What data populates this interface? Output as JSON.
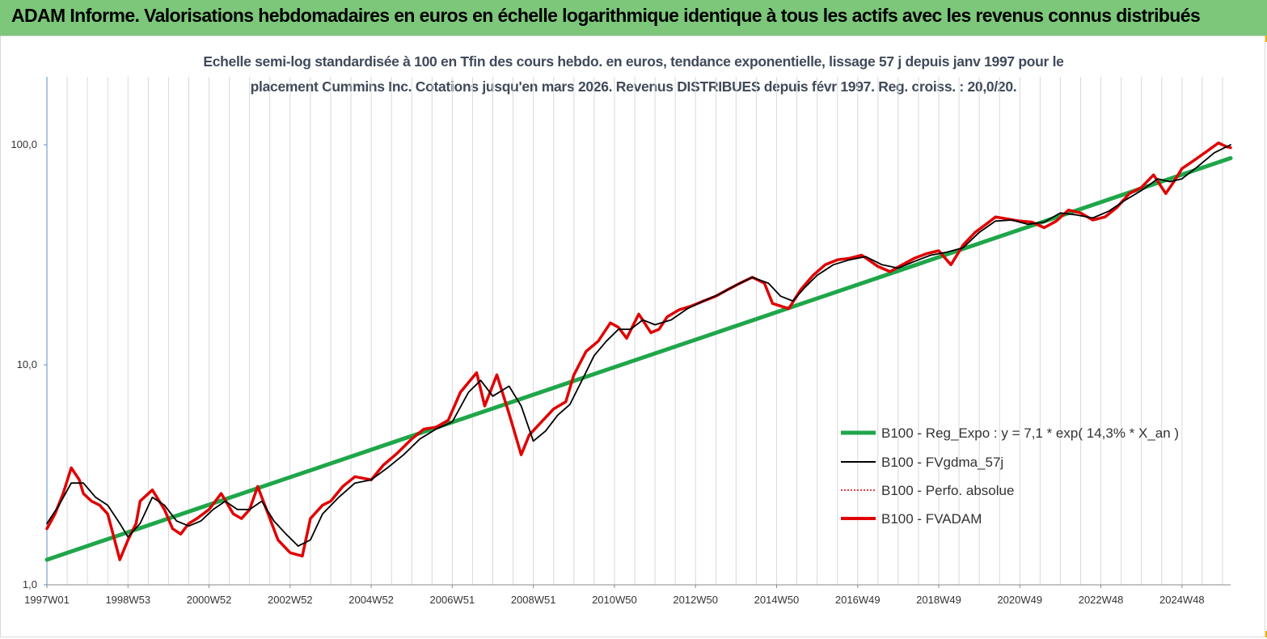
{
  "header": {
    "title": "ADAM Informe. Valorisations hebdomadaires en euros en échelle logarithmique identique à tous les actifs avec les revenus connus distribués"
  },
  "colors": {
    "header_bg": "#7cc77a",
    "accent": "#f5b400",
    "reg_expo": "#1fa64a",
    "fvgdma": "#000000",
    "perfo": "#e00000",
    "fvadam": "#e00000"
  },
  "chart_data": {
    "type": "line",
    "scale": "log",
    "subtitle_line1": "Echelle semi-log standardisée à 100 en Tfin des cours hebdo. en euros, tendance exponentielle, lissage 57 j depuis janv 1997 pour le",
    "subtitle_line2": "placement Cummins Inc. Cotations jusqu'en mars 2026. Revenus DISTRIBUES depuis févr 1997. Reg. croiss. : 20,0/20.",
    "ylim": [
      1,
      200
    ],
    "xlim": [
      1997.0,
      2026.2
    ],
    "grid": "vertical",
    "legend_position": "right",
    "y_ticks": [
      {
        "value": 1,
        "label": "1,0"
      },
      {
        "value": 10,
        "label": "10,0"
      },
      {
        "value": 100,
        "label": "100,0"
      }
    ],
    "x_ticks": [
      {
        "value": 1997.0,
        "label": "1997W01"
      },
      {
        "value": 1999.0,
        "label": "1998W53"
      },
      {
        "value": 2001.0,
        "label": "2000W52"
      },
      {
        "value": 2003.0,
        "label": "2002W52"
      },
      {
        "value": 2005.0,
        "label": "2004W52"
      },
      {
        "value": 2007.0,
        "label": "2006W51"
      },
      {
        "value": 2009.0,
        "label": "2008W51"
      },
      {
        "value": 2011.0,
        "label": "2010W50"
      },
      {
        "value": 2013.0,
        "label": "2012W50"
      },
      {
        "value": 2015.0,
        "label": "2014W50"
      },
      {
        "value": 2017.0,
        "label": "2016W49"
      },
      {
        "value": 2019.0,
        "label": "2018W49"
      },
      {
        "value": 2021.0,
        "label": "2020W49"
      },
      {
        "value": 2023.0,
        "label": "2022W48"
      },
      {
        "value": 2025.0,
        "label": "2024W48"
      }
    ],
    "legend": [
      "B100 - Reg_Expo : y = 7,1 * exp( 14,3% *  X_an )",
      "B100 - FVgdma_57j",
      "B100 - Perfo. absolue",
      "B100 - FVADAM"
    ],
    "series": [
      {
        "name": "B100 - Reg_Expo : y = 7,1 * exp( 14,3% *  X_an )",
        "x": [
          1997.0,
          2026.2
        ],
        "y": [
          1.3,
          87
        ]
      },
      {
        "name": "B100 - FVADAM",
        "x": [
          1997.0,
          1997.2,
          1997.4,
          1997.6,
          1997.8,
          1997.9,
          1998.1,
          1998.3,
          1998.5,
          1998.8,
          1999.0,
          1999.2,
          1999.3,
          1999.6,
          1999.9,
          2000.1,
          2000.3,
          2000.5,
          2000.7,
          2001.0,
          2001.3,
          2001.6,
          2001.8,
          2002.0,
          2002.2,
          2002.5,
          2002.7,
          2003.0,
          2003.3,
          2003.5,
          2003.8,
          2004.0,
          2004.3,
          2004.6,
          2005.0,
          2005.3,
          2005.6,
          2006.0,
          2006.3,
          2006.6,
          2006.9,
          2007.2,
          2007.6,
          2007.8,
          2008.1,
          2008.4,
          2008.7,
          2008.9,
          2009.2,
          2009.5,
          2009.8,
          2010.0,
          2010.3,
          2010.6,
          2010.9,
          2011.1,
          2011.3,
          2011.6,
          2011.9,
          2012.1,
          2012.3,
          2012.6,
          2012.9,
          2013.2,
          2013.5,
          2013.8,
          2014.1,
          2014.4,
          2014.7,
          2014.9,
          2015.3,
          2015.6,
          2015.9,
          2016.2,
          2016.5,
          2016.8,
          2017.1,
          2017.5,
          2017.8,
          2018.1,
          2018.4,
          2018.7,
          2019.0,
          2019.3,
          2019.6,
          2019.9,
          2020.2,
          2020.4,
          2020.7,
          2021.0,
          2021.3,
          2021.6,
          2021.9,
          2022.2,
          2022.5,
          2022.8,
          2023.1,
          2023.4,
          2023.7,
          2024.0,
          2024.3,
          2024.6,
          2024.8,
          2025.0,
          2025.3,
          2025.6,
          2025.9,
          2026.1,
          2026.2
        ],
        "y": [
          1.8,
          2.1,
          2.6,
          3.4,
          3.0,
          2.6,
          2.4,
          2.3,
          2.1,
          1.3,
          1.6,
          1.9,
          2.4,
          2.7,
          2.2,
          1.8,
          1.7,
          1.9,
          2.0,
          2.2,
          2.6,
          2.1,
          2.0,
          2.2,
          2.8,
          2.0,
          1.6,
          1.4,
          1.35,
          2.0,
          2.3,
          2.4,
          2.8,
          3.1,
          3.0,
          3.5,
          3.9,
          4.6,
          5.1,
          5.2,
          5.6,
          7.5,
          9.2,
          6.5,
          9.0,
          6.0,
          3.9,
          4.8,
          5.5,
          6.3,
          6.8,
          9.0,
          11.5,
          12.8,
          15.5,
          14.8,
          13.2,
          17.0,
          14.0,
          14.5,
          16.5,
          17.8,
          18.5,
          19.5,
          20.5,
          22.0,
          23.5,
          25.0,
          23.5,
          19.0,
          18.0,
          22.0,
          25.5,
          28.5,
          30.0,
          30.5,
          31.5,
          28.0,
          26.5,
          28.5,
          30.5,
          32.0,
          33.0,
          28.5,
          35.0,
          40.0,
          44.0,
          47.0,
          46.0,
          45.0,
          44.5,
          42.0,
          45.0,
          50.5,
          49.0,
          45.5,
          47.0,
          52.0,
          60.0,
          64.0,
          73.0,
          60.0,
          68.0,
          78.0,
          85.0,
          93.0,
          102.0,
          98.0,
          97.0
        ]
      },
      {
        "name": "B100 - FVgdma_57j",
        "x": [
          1997.0,
          1997.3,
          1997.6,
          1997.9,
          1998.2,
          1998.5,
          1998.8,
          1999.0,
          1999.3,
          1999.6,
          1999.9,
          2000.2,
          2000.5,
          2000.8,
          2001.1,
          2001.4,
          2001.7,
          2002.0,
          2002.3,
          2002.6,
          2002.9,
          2003.2,
          2003.5,
          2003.8,
          2004.2,
          2004.6,
          2005.0,
          2005.4,
          2005.8,
          2006.2,
          2006.6,
          2007.0,
          2007.4,
          2007.7,
          2008.0,
          2008.4,
          2008.7,
          2009.0,
          2009.3,
          2009.6,
          2009.9,
          2010.2,
          2010.5,
          2010.8,
          2011.1,
          2011.4,
          2011.7,
          2012.0,
          2012.4,
          2012.8,
          2013.2,
          2013.6,
          2014.0,
          2014.4,
          2014.8,
          2015.1,
          2015.4,
          2015.7,
          2016.0,
          2016.4,
          2016.8,
          2017.2,
          2017.6,
          2018.0,
          2018.4,
          2018.8,
          2019.2,
          2019.6,
          2020.0,
          2020.4,
          2020.8,
          2021.2,
          2021.6,
          2022.0,
          2022.4,
          2022.8,
          2023.2,
          2023.6,
          2024.0,
          2024.4,
          2024.7,
          2025.0,
          2025.4,
          2025.8,
          2026.2
        ],
        "y": [
          1.9,
          2.3,
          2.9,
          2.9,
          2.5,
          2.3,
          1.9,
          1.65,
          1.9,
          2.5,
          2.3,
          1.95,
          1.85,
          1.95,
          2.2,
          2.4,
          2.2,
          2.2,
          2.4,
          1.95,
          1.7,
          1.5,
          1.6,
          2.1,
          2.5,
          2.9,
          3.0,
          3.4,
          3.9,
          4.6,
          5.1,
          5.5,
          7.5,
          8.5,
          7.2,
          8.0,
          6.5,
          4.5,
          5.0,
          5.9,
          6.6,
          8.5,
          11.0,
          12.8,
          14.5,
          14.5,
          16.0,
          15.2,
          16.0,
          18.0,
          19.5,
          21.0,
          23.0,
          25.0,
          23.5,
          20.5,
          19.5,
          22.5,
          25.5,
          28.5,
          30.0,
          31.0,
          28.5,
          27.5,
          29.5,
          31.5,
          32.5,
          34.0,
          40.0,
          45.0,
          45.5,
          43.5,
          44.5,
          49.0,
          48.0,
          46.5,
          50.0,
          56.0,
          62.0,
          70.0,
          68.0,
          70.0,
          80.0,
          92.0,
          100.0
        ]
      }
    ]
  }
}
